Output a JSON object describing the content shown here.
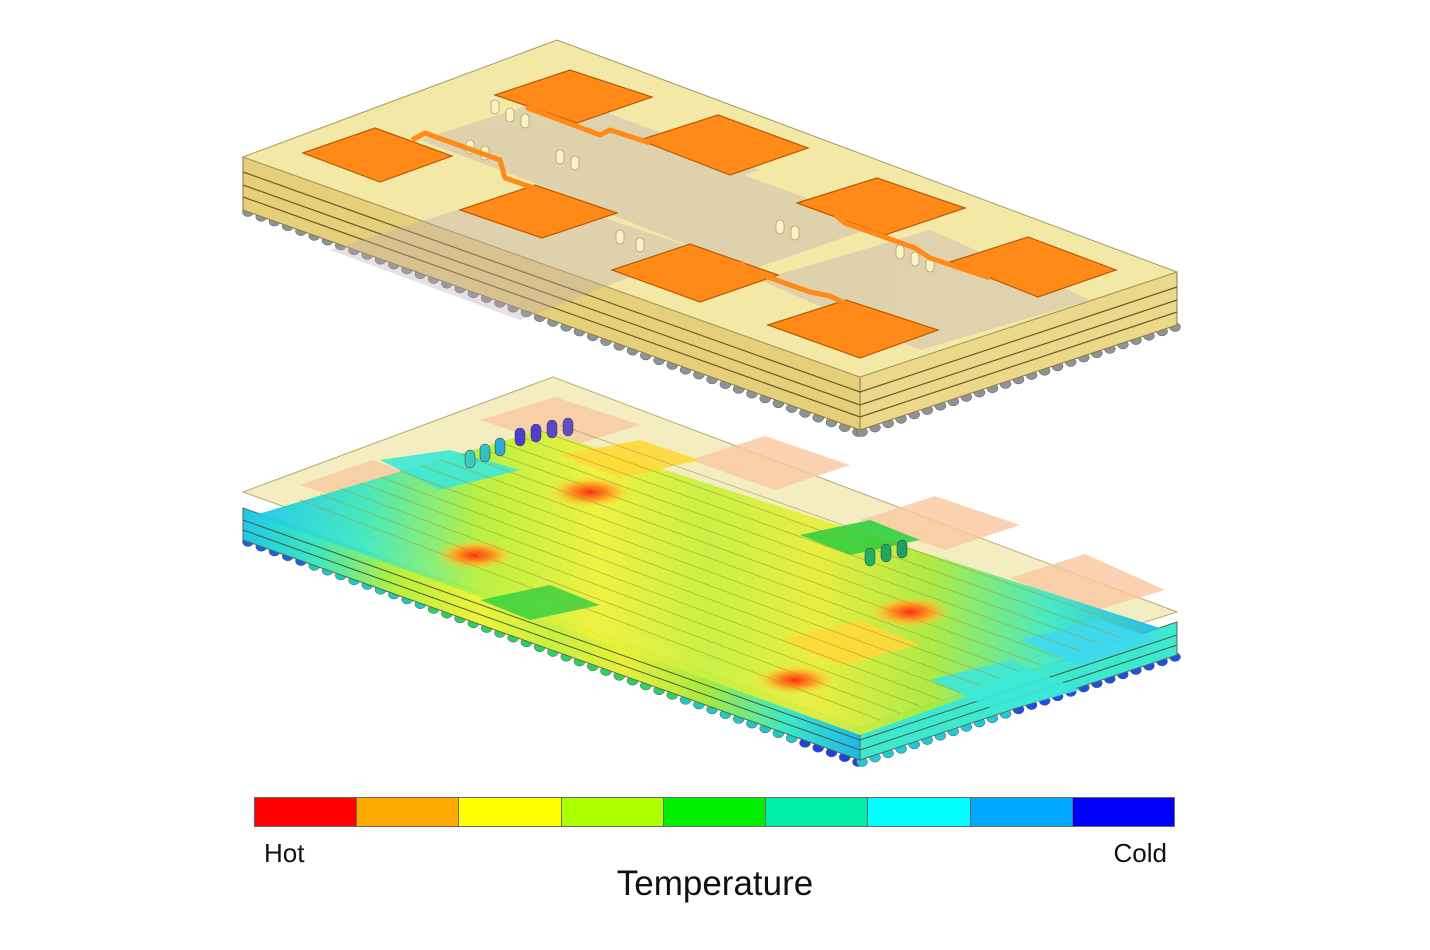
{
  "legend": {
    "hot_label": "Hot",
    "cold_label": "Cold",
    "title": "Temperature",
    "colors": [
      "#ff0000",
      "#ffaa00",
      "#ffff00",
      "#aaff00",
      "#00ee00",
      "#00eeaa",
      "#00ffff",
      "#00aaff",
      "#0000ff"
    ]
  },
  "models": [
    {
      "name": "rf-module-antenna-view",
      "pads": 8
    },
    {
      "name": "rf-module-thermal-view"
    }
  ],
  "colors": {
    "substrate": "#f2e59a",
    "patch": "#ff8a18",
    "ball": "#8a8f90"
  }
}
